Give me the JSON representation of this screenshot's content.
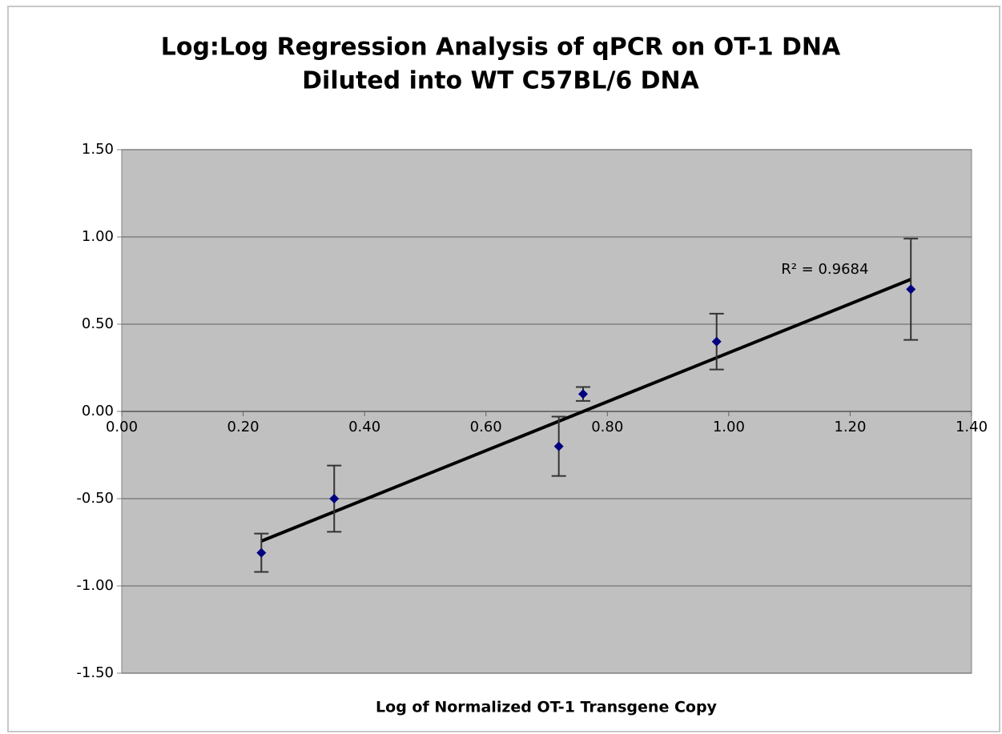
{
  "chart_data": {
    "type": "scatter",
    "title": [
      "Log:Log Regression Analysis of qPCR on OT-1 DNA",
      "Diluted into WT C57BL/6 DNA"
    ],
    "x_label": "Log of Normalized OT-1 Transgene Copy",
    "annotation": "R² = 0.9684",
    "trendline": "linear",
    "series": [
      {
        "color": "#000080",
        "x": [
          0.23,
          0.35,
          0.72,
          0.76,
          0.98,
          1.3
        ],
        "values": [
          -0.81,
          -0.5,
          -0.2,
          0.1,
          0.4,
          0.7
        ],
        "errors": [
          0.11,
          0.19,
          0.17,
          0.04,
          0.16,
          0.29
        ]
      }
    ],
    "xlim": [
      0,
      1.4
    ],
    "xticks": [
      {
        "value": 0,
        "label": "0.00"
      },
      {
        "value": 0.2,
        "label": "0.20"
      },
      {
        "value": 0.4,
        "label": "0.40"
      },
      {
        "value": 0.6,
        "label": "0.60"
      },
      {
        "value": 0.8,
        "label": "0.80"
      },
      {
        "value": 1.0,
        "label": "1.00"
      },
      {
        "value": 1.2,
        "label": "1.20"
      },
      {
        "value": 1.4,
        "label": "1.40"
      }
    ],
    "ylim": [
      -1.5,
      1.5
    ],
    "yticks": [
      {
        "value": -1.5,
        "label": "-1.50"
      },
      {
        "value": -1.0,
        "label": "-1.00"
      },
      {
        "value": -0.5,
        "label": "-0.50"
      },
      {
        "value": 0,
        "label": "0.00"
      },
      {
        "value": 0.5,
        "label": "0.50"
      },
      {
        "value": 1.0,
        "label": "1.00"
      },
      {
        "value": 1.5,
        "label": "1.50"
      }
    ],
    "grid": true,
    "plot_background": "#c0c0c0"
  }
}
